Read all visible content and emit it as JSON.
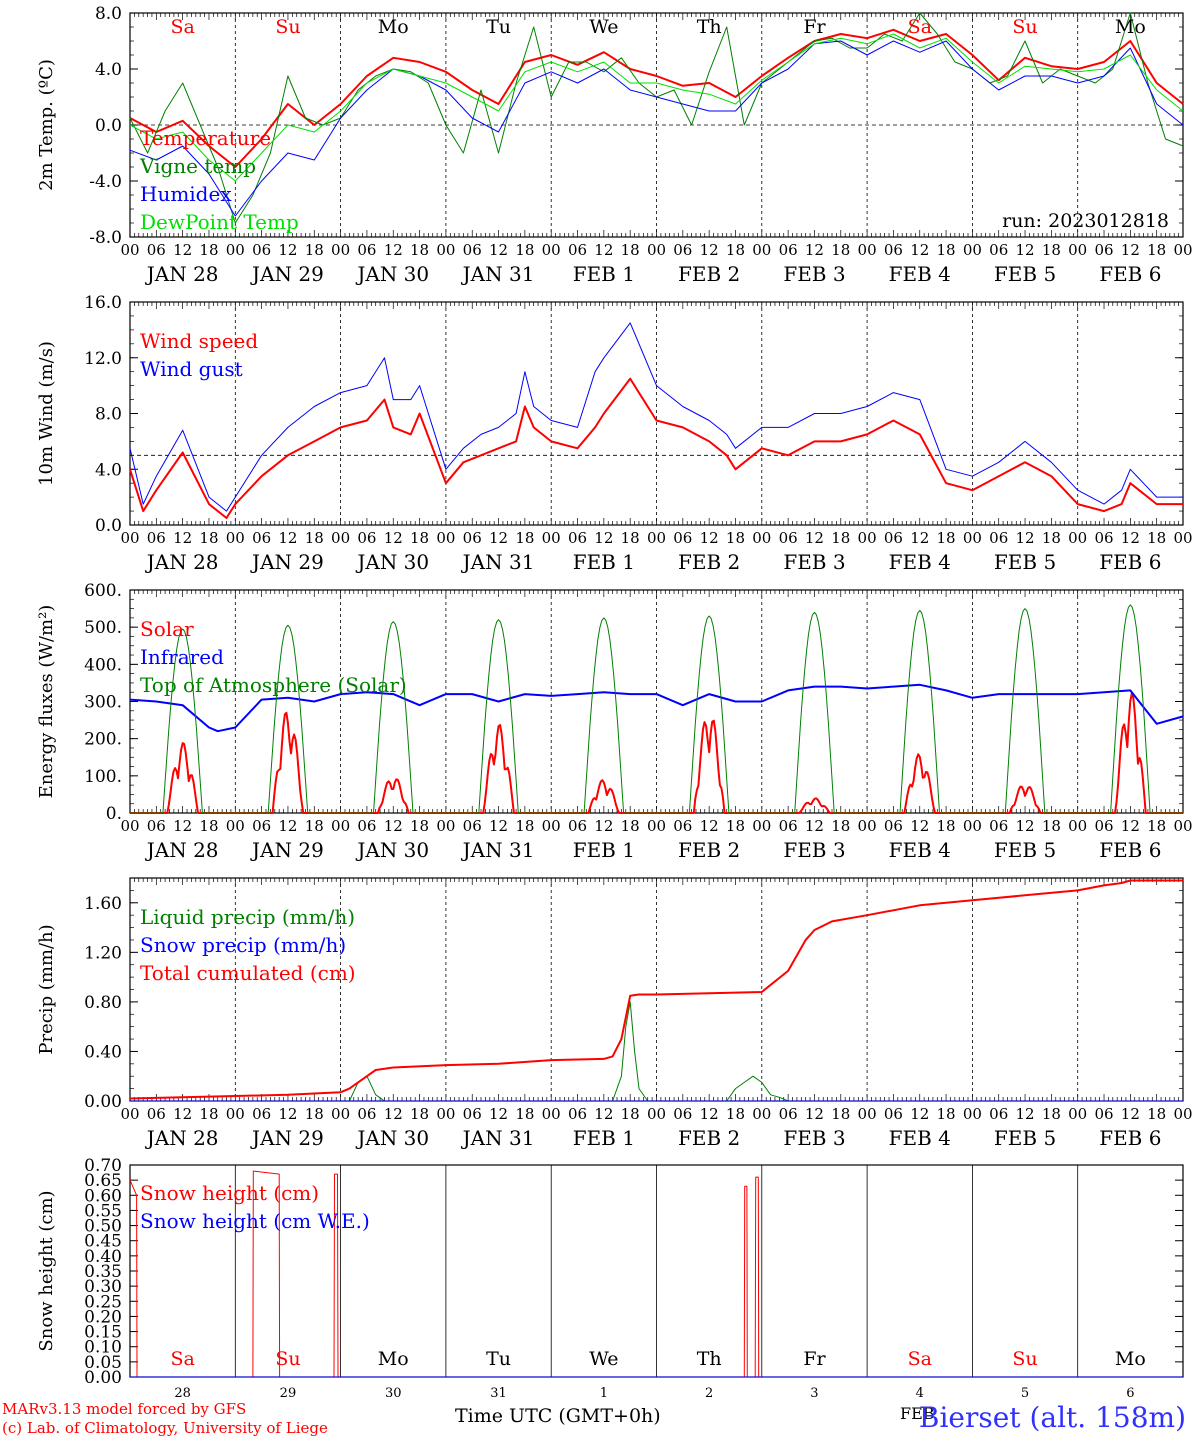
{
  "colors": {
    "temperature": "#ff0000",
    "vigne": "#008000",
    "humidex": "#0000ff",
    "dewpoint": "#00e000",
    "weekend": "#ff0000",
    "weekday": "#000000"
  },
  "days": [
    "Sa",
    "Su",
    "Mo",
    "Tu",
    "We",
    "Th",
    "Fr",
    "Sa",
    "Su",
    "Mo"
  ],
  "weekend_flags": [
    true,
    true,
    false,
    false,
    false,
    false,
    false,
    true,
    true,
    false
  ],
  "date_labels": [
    "JAN 28",
    "JAN 29",
    "JAN 30",
    "JAN 31",
    "FEB  1",
    "FEB  2",
    "FEB  3",
    "FEB  4",
    "FEB  5",
    "FEB  6"
  ],
  "hour_labels": [
    "00",
    "06",
    "12",
    "18"
  ],
  "hour_end_label": "00",
  "day_numbers": [
    "28",
    "29",
    "30",
    "31",
    "1",
    "2",
    "3",
    "4",
    "5",
    "6"
  ],
  "month_label": "FEB",
  "run_label": "run: 2023012818",
  "x_title": "Time UTC (GMT+0h)",
  "credit_line1": "MARv3.13 model forced by GFS",
  "credit_line2": "(c) Lab. of Climatology, University of Liege",
  "station": "Bierset (alt. 158m)",
  "chart_data": [
    {
      "type": "line",
      "ylabel": "2m Temp. (ºC)",
      "ylim": [
        -8,
        8
      ],
      "yticks": [
        -8,
        -4,
        0,
        4,
        8
      ],
      "ytick_labels": [
        "-8.0",
        "-4.0",
        "0.0",
        "4.0",
        "8.0"
      ],
      "ref_line": 0,
      "x_unit": "hours since JAN 28 00 UTC",
      "series": [
        {
          "name": "Temperature",
          "color": "#ff0000",
          "width": 2,
          "x": [
            0,
            6,
            12,
            18,
            24,
            30,
            36,
            42,
            48,
            54,
            60,
            66,
            72,
            78,
            84,
            90,
            96,
            102,
            108,
            114,
            120,
            126,
            132,
            138,
            144,
            150,
            156,
            162,
            168,
            174,
            180,
            186,
            192,
            198,
            204,
            210,
            216,
            222,
            228,
            234,
            240
          ],
          "y": [
            0.5,
            -0.5,
            0.3,
            -1.5,
            -3.0,
            -1.0,
            1.5,
            0.0,
            1.5,
            3.5,
            4.8,
            4.5,
            3.8,
            2.5,
            1.5,
            4.5,
            5.0,
            4.3,
            5.2,
            4.0,
            3.5,
            2.8,
            3.0,
            2.0,
            3.5,
            4.8,
            6.0,
            6.5,
            6.2,
            6.8,
            6.0,
            6.5,
            5.0,
            3.2,
            4.8,
            4.2,
            4.0,
            4.5,
            6.0,
            3.0,
            1.5
          ]
        },
        {
          "name": "Vigne temp",
          "color": "#008000",
          "width": 1,
          "x": [
            0,
            4,
            8,
            12,
            16,
            20,
            24,
            28,
            32,
            36,
            40,
            44,
            48,
            52,
            56,
            60,
            64,
            68,
            72,
            76,
            80,
            84,
            88,
            92,
            96,
            100,
            104,
            108,
            112,
            116,
            120,
            124,
            128,
            132,
            136,
            140,
            144,
            148,
            152,
            156,
            160,
            164,
            168,
            172,
            176,
            180,
            184,
            188,
            192,
            196,
            200,
            204,
            208,
            212,
            216,
            220,
            224,
            228,
            232,
            236,
            240
          ],
          "y": [
            0.5,
            -2.0,
            1.0,
            3.0,
            0.0,
            -3.0,
            -7.0,
            -5.0,
            -2.0,
            3.5,
            0.5,
            0.0,
            0.5,
            2.5,
            3.5,
            4.0,
            3.8,
            3.0,
            0.0,
            -2.0,
            2.5,
            -2.0,
            3.0,
            7.0,
            2.0,
            4.5,
            4.5,
            3.8,
            4.8,
            3.0,
            2.0,
            2.5,
            0.0,
            3.8,
            7.0,
            0.0,
            3.0,
            4.0,
            5.0,
            6.0,
            6.2,
            5.5,
            5.5,
            6.5,
            6.0,
            8.0,
            6.5,
            4.5,
            4.0,
            3.0,
            3.5,
            6.0,
            3.0,
            4.0,
            3.5,
            3.0,
            4.0,
            8.0,
            3.0,
            -1.0,
            -1.5
          ]
        },
        {
          "name": "Humidex",
          "color": "#0000ff",
          "width": 1,
          "x": [
            0,
            6,
            12,
            18,
            24,
            30,
            36,
            42,
            48,
            54,
            60,
            66,
            72,
            78,
            84,
            90,
            96,
            102,
            108,
            114,
            120,
            126,
            132,
            138,
            144,
            150,
            156,
            162,
            168,
            174,
            180,
            186,
            192,
            198,
            204,
            210,
            216,
            222,
            228,
            234,
            240
          ],
          "y": [
            -1.8,
            -2.5,
            -1.5,
            -3.5,
            -6.5,
            -4.0,
            -2.0,
            -2.5,
            0.5,
            2.5,
            4.0,
            3.5,
            2.5,
            0.5,
            -0.5,
            3.0,
            3.8,
            3.0,
            4.0,
            2.5,
            2.0,
            1.5,
            1.0,
            1.0,
            3.0,
            4.0,
            5.8,
            6.0,
            5.0,
            6.0,
            5.2,
            6.0,
            4.0,
            2.5,
            3.5,
            3.5,
            3.0,
            3.5,
            5.5,
            1.5,
            0.0
          ]
        },
        {
          "name": "DewPoint Temp",
          "color": "#00e000",
          "width": 1,
          "x": [
            0,
            6,
            12,
            18,
            24,
            30,
            36,
            42,
            48,
            54,
            60,
            66,
            72,
            78,
            84,
            90,
            96,
            102,
            108,
            114,
            120,
            126,
            132,
            138,
            144,
            150,
            156,
            162,
            168,
            174,
            180,
            186,
            192,
            198,
            204,
            210,
            216,
            222,
            228,
            234,
            240
          ],
          "y": [
            0.0,
            -1.0,
            -0.5,
            -2.5,
            -4.0,
            -2.0,
            0.0,
            -0.5,
            1.0,
            3.0,
            4.0,
            3.5,
            3.0,
            2.0,
            1.0,
            3.8,
            4.5,
            3.8,
            4.5,
            3.0,
            3.0,
            2.5,
            2.2,
            1.5,
            3.2,
            4.5,
            5.8,
            6.2,
            5.8,
            6.5,
            5.5,
            6.2,
            4.5,
            3.0,
            4.2,
            4.0,
            3.8,
            4.0,
            5.0,
            2.5,
            1.0
          ]
        }
      ]
    },
    {
      "type": "line",
      "ylabel": "10m Wind (m/s)",
      "ylim": [
        0,
        16
      ],
      "yticks": [
        0,
        4,
        8,
        12,
        16
      ],
      "ytick_labels": [
        "0.0",
        "4.0",
        "8.0",
        "12.0",
        "16.0"
      ],
      "ref_line": 5,
      "x_unit": "hours since JAN 28 00 UTC",
      "series": [
        {
          "name": "Wind speed",
          "color": "#ff0000",
          "width": 2,
          "x": [
            0,
            3,
            6,
            12,
            18,
            22,
            24,
            30,
            36,
            42,
            48,
            54,
            58,
            60,
            64,
            66,
            72,
            76,
            80,
            84,
            88,
            90,
            92,
            96,
            102,
            106,
            108,
            114,
            120,
            126,
            132,
            136,
            138,
            144,
            150,
            156,
            162,
            168,
            174,
            180,
            186,
            192,
            198,
            204,
            210,
            216,
            222,
            226,
            228,
            234,
            240
          ],
          "y": [
            4.0,
            1.0,
            2.5,
            5.2,
            1.5,
            0.5,
            1.5,
            3.5,
            5.0,
            6.0,
            7.0,
            7.5,
            9.0,
            7.0,
            6.5,
            8.0,
            3.0,
            4.5,
            5.0,
            5.5,
            6.0,
            8.5,
            7.0,
            6.0,
            5.5,
            7.0,
            8.0,
            10.5,
            7.5,
            7.0,
            6.0,
            5.0,
            4.0,
            5.5,
            5.0,
            6.0,
            6.0,
            6.5,
            7.5,
            6.5,
            3.0,
            2.5,
            3.5,
            4.5,
            3.5,
            1.5,
            1.0,
            1.5,
            3.0,
            1.5,
            1.5
          ]
        },
        {
          "name": "Wind gust",
          "color": "#0000ff",
          "width": 1,
          "x": [
            0,
            3,
            6,
            12,
            18,
            22,
            24,
            30,
            36,
            42,
            48,
            54,
            58,
            60,
            64,
            66,
            72,
            76,
            80,
            84,
            88,
            90,
            92,
            96,
            102,
            106,
            108,
            114,
            120,
            126,
            132,
            136,
            138,
            144,
            150,
            156,
            162,
            168,
            174,
            180,
            186,
            192,
            198,
            204,
            210,
            216,
            222,
            226,
            228,
            234,
            240
          ],
          "y": [
            5.5,
            1.5,
            3.5,
            6.8,
            2.0,
            1.0,
            2.0,
            5.0,
            7.0,
            8.5,
            9.5,
            10.0,
            12.0,
            9.0,
            9.0,
            10.0,
            4.0,
            5.5,
            6.5,
            7.0,
            8.0,
            11.0,
            8.5,
            7.5,
            7.0,
            11.0,
            12.0,
            14.5,
            10.0,
            8.5,
            7.5,
            6.5,
            5.5,
            7.0,
            7.0,
            8.0,
            8.0,
            8.5,
            9.5,
            9.0,
            4.0,
            3.5,
            4.5,
            6.0,
            4.5,
            2.5,
            1.5,
            2.5,
            4.0,
            2.0,
            2.0
          ]
        }
      ]
    },
    {
      "type": "line",
      "ylabel": "Energy fluxes (W/m²)",
      "ylim": [
        0,
        600
      ],
      "yticks": [
        0,
        100,
        200,
        300,
        400,
        500,
        600
      ],
      "ytick_labels": [
        "0.",
        "100.",
        "200.",
        "300.",
        "400.",
        "500.",
        "600."
      ],
      "x_unit": "hours since JAN 28 00 UTC",
      "series": [
        {
          "name": "Solar",
          "color": "#ff0000",
          "width": 2,
          "daily_peaks": [
            190,
            280,
            100,
            240,
            90,
            280,
            40,
            160,
            80,
            330
          ]
        },
        {
          "name": "Infrared",
          "color": "#0000ff",
          "width": 2,
          "x": [
            0,
            6,
            12,
            18,
            20,
            24,
            30,
            36,
            42,
            48,
            54,
            60,
            66,
            72,
            78,
            84,
            90,
            96,
            102,
            108,
            114,
            120,
            126,
            132,
            138,
            144,
            150,
            156,
            162,
            168,
            174,
            180,
            186,
            192,
            198,
            204,
            210,
            216,
            222,
            228,
            234,
            240
          ],
          "y": [
            305,
            300,
            290,
            230,
            220,
            230,
            305,
            310,
            300,
            320,
            325,
            320,
            290,
            320,
            320,
            300,
            320,
            315,
            320,
            325,
            320,
            320,
            290,
            320,
            300,
            300,
            330,
            340,
            340,
            335,
            340,
            345,
            330,
            310,
            320,
            320,
            320,
            320,
            325,
            330,
            240,
            260
          ]
        },
        {
          "name": "Top of Atmosphere (Solar)",
          "color": "#008000",
          "width": 1,
          "daily_peaks": [
            495,
            505,
            515,
            520,
            525,
            530,
            540,
            545,
            550,
            560
          ]
        }
      ]
    },
    {
      "type": "line",
      "ylabel": "Precip (mm/h)",
      "ylim": [
        0,
        1.8
      ],
      "yticks": [
        0,
        0.4,
        0.8,
        1.2,
        1.6
      ],
      "ytick_labels": [
        "0.00",
        "0.40",
        "0.80",
        "1.20",
        "1.60"
      ],
      "x_unit": "hours since JAN 28 00 UTC",
      "series": [
        {
          "name": "Liquid precip (mm/h)",
          "color": "#008000",
          "width": 1,
          "x": [
            0,
            50,
            52,
            54,
            56,
            58,
            60,
            110,
            112,
            113,
            114,
            115,
            116,
            118,
            120,
            136,
            138,
            140,
            142,
            144,
            146,
            148,
            150,
            240
          ],
          "y": [
            0.0,
            0.0,
            0.15,
            0.2,
            0.05,
            0.0,
            0.0,
            0.0,
            0.2,
            0.6,
            0.8,
            0.4,
            0.1,
            0.0,
            0.0,
            0.0,
            0.1,
            0.15,
            0.2,
            0.15,
            0.05,
            0.03,
            0.0,
            0.0
          ]
        },
        {
          "name": "Snow precip (mm/h)",
          "color": "#0000ff",
          "width": 1,
          "x": [
            0,
            240
          ],
          "y": [
            0.0,
            0.0
          ]
        },
        {
          "name": "Total cumulated (cm)",
          "color": "#ff0000",
          "width": 2,
          "x": [
            0,
            24,
            36,
            48,
            50,
            54,
            56,
            60,
            72,
            84,
            96,
            108,
            110,
            112,
            114,
            116,
            120,
            132,
            144,
            150,
            154,
            156,
            160,
            168,
            180,
            192,
            204,
            216,
            222,
            226,
            228,
            240
          ],
          "y": [
            0.02,
            0.04,
            0.05,
            0.07,
            0.1,
            0.2,
            0.25,
            0.27,
            0.29,
            0.3,
            0.33,
            0.34,
            0.36,
            0.5,
            0.85,
            0.86,
            0.86,
            0.87,
            0.88,
            1.05,
            1.3,
            1.38,
            1.45,
            1.5,
            1.58,
            1.62,
            1.66,
            1.7,
            1.74,
            1.76,
            1.78,
            1.78
          ]
        }
      ]
    },
    {
      "type": "line",
      "ylabel": "Snow height (cm)",
      "ylim": [
        0,
        0.7
      ],
      "yticks": [
        0,
        0.05,
        0.1,
        0.15,
        0.2,
        0.25,
        0.3,
        0.35,
        0.4,
        0.45,
        0.5,
        0.55,
        0.6,
        0.65,
        0.7
      ],
      "ytick_labels": [
        "0.00",
        "0.05",
        "0.10",
        "0.15",
        "0.20",
        "0.25",
        "0.30",
        "0.35",
        "0.40",
        "0.45",
        "0.50",
        "0.55",
        "0.60",
        "0.65",
        "0.70"
      ],
      "x_unit": "hours since JAN 28 00 UTC",
      "series": [
        {
          "name": "Snow height (cm)",
          "color": "#ff0000",
          "width": 1,
          "x": [
            0,
            1.5,
            1.6,
            28,
            28.1,
            34,
            34.1,
            46.5,
            46.6,
            47.3,
            47.4,
            140,
            140.1,
            140.6,
            140.7,
            142.5,
            142.6,
            143.2,
            143.3,
            240
          ],
          "y": [
            0.65,
            0.6,
            0.0,
            0.0,
            0.68,
            0.67,
            0.0,
            0.0,
            0.67,
            0.67,
            0.0,
            0.0,
            0.63,
            0.63,
            0.0,
            0.0,
            0.66,
            0.66,
            0.0,
            0.0
          ]
        },
        {
          "name": "Snow height (cm W.E.)",
          "color": "#0000ff",
          "width": 1,
          "x": [
            0,
            240
          ],
          "y": [
            0.0,
            0.0
          ]
        }
      ]
    }
  ]
}
